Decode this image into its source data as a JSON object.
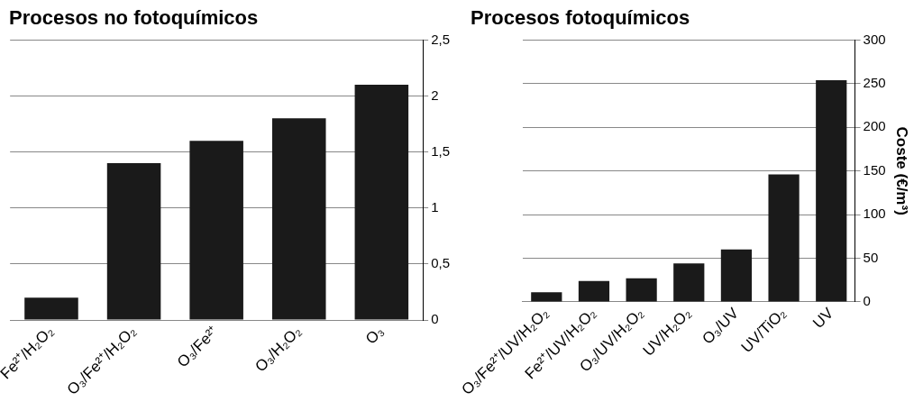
{
  "chart_data": [
    {
      "type": "bar",
      "title": "Procesos no fotoquímicos",
      "categories": [
        "Fe²⁺/H₂O₂",
        "O₃/Fe²⁺/H₂O₂",
        "O₃/Fe²⁺",
        "O₃/H₂O₂",
        "O₃"
      ],
      "values": [
        0.2,
        1.4,
        1.6,
        1.8,
        2.1
      ],
      "color": "#1a1a1a",
      "ylim": [
        0,
        2.5
      ],
      "yticks": [
        0,
        {
          "value": 0.5,
          "label": "0,5"
        },
        1,
        {
          "value": 1.5,
          "label": "1,5"
        },
        2,
        {
          "value": 2.5,
          "label": "2,5"
        }
      ],
      "grid": "y",
      "legend": false
    },
    {
      "type": "bar",
      "title": "Procesos fotoquímicos",
      "ylabel": "Coste (€/m³)",
      "categories": [
        "O₃/Fe²⁺/UV/H₂O₂",
        "Fe²⁺/UV/H₂O₂",
        "O₃/UV/H₂O₂",
        "UV/H₂O₂",
        "O₃/UV",
        "UV/TiO₂",
        "UV"
      ],
      "values": [
        11,
        24,
        27,
        44,
        60,
        146,
        254
      ],
      "color": "#1a1a1a",
      "ylim": [
        0,
        300
      ],
      "yticks": [
        0,
        50,
        100,
        150,
        200,
        250,
        300
      ],
      "grid": "y",
      "legend": false
    }
  ]
}
